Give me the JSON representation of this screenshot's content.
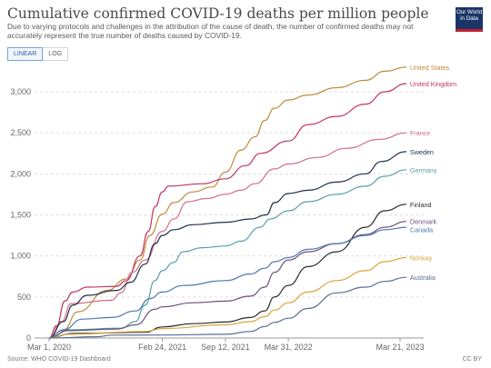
{
  "header": {
    "title": "Cumulative confirmed COVID-19 deaths per million people",
    "subtitle": "Due to varying protocols and challenges in the attribution of the cause of death, the number of confirmed deaths may not accurately represent the true number of deaths caused by COVID-19.",
    "logo_line1": "Our World",
    "logo_line2": "in Data"
  },
  "toggle": {
    "linear_label": "LINEAR",
    "log_label": "LOG",
    "selected": "LINEAR"
  },
  "footer": {
    "source": "Source: WHO COVID-19 Dashboard",
    "license": "CC BY"
  },
  "chart_data": {
    "type": "line",
    "title": "Cumulative confirmed COVID-19 deaths per million people",
    "xlabel": "",
    "ylabel": "",
    "x_range": [
      "2020-01-01",
      "2023-04-30"
    ],
    "ylim": [
      0,
      3300
    ],
    "y_ticks": [
      0,
      500,
      1000,
      1500,
      2000,
      2500,
      3000
    ],
    "y_tick_labels": [
      "0",
      "500",
      "1,000",
      "1,500",
      "2,000",
      "2,500",
      "3,000"
    ],
    "x_ticks": [
      "2020-03-01",
      "2021-02-24",
      "2021-09-12",
      "2022-03-31",
      "2023-03-21"
    ],
    "x_tick_labels": [
      "Mar 1, 2020",
      "Feb 24, 2021",
      "Sep 12, 2021",
      "Mar 31, 2022",
      "Mar 21, 2023"
    ],
    "grid": "horizontal dashed",
    "legend": "inline labels at right end of lines",
    "series": [
      {
        "name": "United States",
        "color": "#c08a3e",
        "points": [
          [
            "2020-03-01",
            0
          ],
          [
            "2020-04-15",
            100
          ],
          [
            "2020-06-01",
            320
          ],
          [
            "2020-09-01",
            580
          ],
          [
            "2020-11-01",
            720
          ],
          [
            "2020-12-15",
            950
          ],
          [
            "2021-01-15",
            1250
          ],
          [
            "2021-02-24",
            1510
          ],
          [
            "2021-04-01",
            1650
          ],
          [
            "2021-06-01",
            1780
          ],
          [
            "2021-08-01",
            1840
          ],
          [
            "2021-09-12",
            2020
          ],
          [
            "2021-11-01",
            2290
          ],
          [
            "2021-12-15",
            2450
          ],
          [
            "2022-01-15",
            2650
          ],
          [
            "2022-02-15",
            2800
          ],
          [
            "2022-03-31",
            2900
          ],
          [
            "2022-06-01",
            2960
          ],
          [
            "2022-09-01",
            3050
          ],
          [
            "2022-12-01",
            3140
          ],
          [
            "2023-02-01",
            3250
          ],
          [
            "2023-04-10",
            3300
          ]
        ]
      },
      {
        "name": "United Kingdom",
        "color": "#c0375a",
        "points": [
          [
            "2020-03-01",
            0
          ],
          [
            "2020-03-25",
            150
          ],
          [
            "2020-04-20",
            450
          ],
          [
            "2020-05-15",
            560
          ],
          [
            "2020-07-01",
            620
          ],
          [
            "2020-10-01",
            630
          ],
          [
            "2020-11-01",
            700
          ],
          [
            "2020-12-15",
            1000
          ],
          [
            "2021-01-10",
            1300
          ],
          [
            "2021-02-01",
            1600
          ],
          [
            "2021-02-24",
            1780
          ],
          [
            "2021-03-15",
            1850
          ],
          [
            "2021-07-01",
            1880
          ],
          [
            "2021-09-12",
            1940
          ],
          [
            "2021-11-15",
            2100
          ],
          [
            "2022-01-01",
            2250
          ],
          [
            "2022-03-31",
            2400
          ],
          [
            "2022-06-01",
            2600
          ],
          [
            "2022-09-01",
            2700
          ],
          [
            "2022-12-01",
            2850
          ],
          [
            "2023-02-01",
            3000
          ],
          [
            "2023-04-10",
            3100
          ]
        ]
      },
      {
        "name": "France",
        "color": "#d36e88",
        "points": [
          [
            "2020-03-01",
            0
          ],
          [
            "2020-04-10",
            200
          ],
          [
            "2020-05-10",
            420
          ],
          [
            "2020-09-15",
            460
          ],
          [
            "2020-10-15",
            550
          ],
          [
            "2020-11-20",
            800
          ],
          [
            "2020-12-31",
            950
          ],
          [
            "2021-02-24",
            1300
          ],
          [
            "2021-04-01",
            1450
          ],
          [
            "2021-05-15",
            1660
          ],
          [
            "2021-07-15",
            1700
          ],
          [
            "2021-09-12",
            1750
          ],
          [
            "2021-11-01",
            1800
          ],
          [
            "2021-12-15",
            1880
          ],
          [
            "2022-02-15",
            2060
          ],
          [
            "2022-03-31",
            2120
          ],
          [
            "2022-07-01",
            2200
          ],
          [
            "2022-10-01",
            2310
          ],
          [
            "2023-01-15",
            2420
          ],
          [
            "2023-04-10",
            2500
          ]
        ]
      },
      {
        "name": "Sweden",
        "color": "#1f2d47",
        "points": [
          [
            "2020-03-01",
            0
          ],
          [
            "2020-04-15",
            200
          ],
          [
            "2020-05-15",
            400
          ],
          [
            "2020-06-30",
            520
          ],
          [
            "2020-10-01",
            580
          ],
          [
            "2020-11-15",
            680
          ],
          [
            "2020-12-31",
            900
          ],
          [
            "2021-02-01",
            1150
          ],
          [
            "2021-02-24",
            1250
          ],
          [
            "2021-04-01",
            1320
          ],
          [
            "2021-06-01",
            1380
          ],
          [
            "2021-09-12",
            1410
          ],
          [
            "2021-12-01",
            1450
          ],
          [
            "2022-01-20",
            1500
          ],
          [
            "2022-02-15",
            1650
          ],
          [
            "2022-03-31",
            1760
          ],
          [
            "2022-06-01",
            1800
          ],
          [
            "2022-09-01",
            1900
          ],
          [
            "2022-12-01",
            2000
          ],
          [
            "2023-01-20",
            2150
          ],
          [
            "2023-04-10",
            2270
          ]
        ]
      },
      {
        "name": "Germany",
        "color": "#58a0a6",
        "points": [
          [
            "2020-03-01",
            0
          ],
          [
            "2020-05-01",
            100
          ],
          [
            "2020-10-15",
            120
          ],
          [
            "2020-11-30",
            200
          ],
          [
            "2020-12-31",
            400
          ],
          [
            "2021-01-31",
            700
          ],
          [
            "2021-02-24",
            820
          ],
          [
            "2021-03-31",
            920
          ],
          [
            "2021-05-01",
            1050
          ],
          [
            "2021-07-01",
            1100
          ],
          [
            "2021-09-12",
            1120
          ],
          [
            "2021-11-01",
            1180
          ],
          [
            "2021-12-31",
            1350
          ],
          [
            "2022-02-01",
            1450
          ],
          [
            "2022-03-31",
            1550
          ],
          [
            "2022-06-01",
            1660
          ],
          [
            "2022-09-01",
            1750
          ],
          [
            "2022-12-01",
            1850
          ],
          [
            "2023-01-31",
            1970
          ],
          [
            "2023-04-10",
            2050
          ]
        ]
      },
      {
        "name": "Finland",
        "color": "#2a2a2a",
        "points": [
          [
            "2020-03-01",
            0
          ],
          [
            "2020-05-15",
            55
          ],
          [
            "2020-12-31",
            70
          ],
          [
            "2021-02-24",
            135
          ],
          [
            "2021-06-01",
            175
          ],
          [
            "2021-09-12",
            195
          ],
          [
            "2021-12-01",
            250
          ],
          [
            "2022-01-15",
            330
          ],
          [
            "2022-02-15",
            500
          ],
          [
            "2022-03-31",
            640
          ],
          [
            "2022-06-01",
            870
          ],
          [
            "2022-09-01",
            1050
          ],
          [
            "2022-12-01",
            1350
          ],
          [
            "2023-01-31",
            1550
          ],
          [
            "2023-04-10",
            1630
          ]
        ]
      },
      {
        "name": "Denmark",
        "color": "#6b4f7a",
        "points": [
          [
            "2020-03-01",
            0
          ],
          [
            "2020-05-01",
            90
          ],
          [
            "2020-10-01",
            110
          ],
          [
            "2020-12-01",
            160
          ],
          [
            "2021-01-31",
            350
          ],
          [
            "2021-02-24",
            380
          ],
          [
            "2021-06-01",
            430
          ],
          [
            "2021-09-12",
            450
          ],
          [
            "2021-12-01",
            510
          ],
          [
            "2022-01-15",
            620
          ],
          [
            "2022-02-15",
            800
          ],
          [
            "2022-03-31",
            950
          ],
          [
            "2022-06-01",
            1050
          ],
          [
            "2022-09-01",
            1150
          ],
          [
            "2022-12-01",
            1260
          ],
          [
            "2023-02-01",
            1350
          ],
          [
            "2023-04-10",
            1420
          ]
        ]
      },
      {
        "name": "Canada",
        "color": "#4e76b3",
        "points": [
          [
            "2020-03-01",
            0
          ],
          [
            "2020-04-15",
            100
          ],
          [
            "2020-06-15",
            230
          ],
          [
            "2020-09-15",
            250
          ],
          [
            "2020-12-01",
            330
          ],
          [
            "2021-01-15",
            480
          ],
          [
            "2021-02-24",
            560
          ],
          [
            "2021-05-01",
            640
          ],
          [
            "2021-09-12",
            700
          ],
          [
            "2021-12-01",
            780
          ],
          [
            "2022-01-15",
            850
          ],
          [
            "2022-02-15",
            930
          ],
          [
            "2022-03-31",
            980
          ],
          [
            "2022-06-01",
            1080
          ],
          [
            "2022-09-01",
            1150
          ],
          [
            "2022-12-01",
            1250
          ],
          [
            "2023-02-01",
            1320
          ],
          [
            "2023-04-10",
            1350
          ]
        ]
      },
      {
        "name": "Norway",
        "color": "#d9a53a",
        "points": [
          [
            "2020-03-01",
            0
          ],
          [
            "2020-05-01",
            45
          ],
          [
            "2020-12-31",
            80
          ],
          [
            "2021-02-24",
            115
          ],
          [
            "2021-09-12",
            160
          ],
          [
            "2021-12-01",
            200
          ],
          [
            "2022-01-15",
            260
          ],
          [
            "2022-02-15",
            340
          ],
          [
            "2022-03-31",
            430
          ],
          [
            "2022-06-01",
            560
          ],
          [
            "2022-09-01",
            700
          ],
          [
            "2022-12-01",
            820
          ],
          [
            "2023-02-01",
            930
          ],
          [
            "2023-04-10",
            980
          ]
        ]
      },
      {
        "name": "Australia",
        "color": "#5a6b94",
        "points": [
          [
            "2020-03-01",
            0
          ],
          [
            "2020-08-01",
            15
          ],
          [
            "2020-09-15",
            35
          ],
          [
            "2021-02-24",
            36
          ],
          [
            "2021-09-12",
            45
          ],
          [
            "2021-12-01",
            80
          ],
          [
            "2022-01-15",
            140
          ],
          [
            "2022-02-15",
            190
          ],
          [
            "2022-03-31",
            240
          ],
          [
            "2022-06-01",
            360
          ],
          [
            "2022-09-01",
            550
          ],
          [
            "2022-12-01",
            620
          ],
          [
            "2023-02-01",
            690
          ],
          [
            "2023-04-10",
            740
          ]
        ]
      }
    ]
  }
}
